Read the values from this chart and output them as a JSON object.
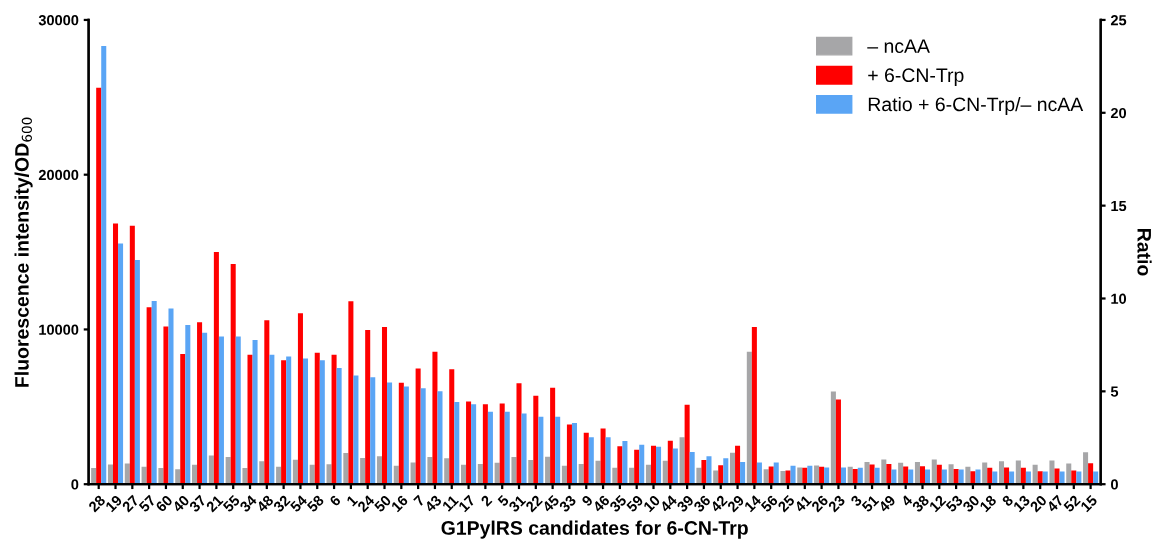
{
  "chart_data": {
    "type": "bar",
    "xlabel": "G1PylRS candidates for 6-CN-Trp",
    "ylabel": "Fluorescence intensity/OD$_{600}$",
    "y2label": "Ratio",
    "categories": [
      "28",
      "19",
      "27",
      "57",
      "60",
      "40",
      "37",
      "21",
      "55",
      "34",
      "48",
      "32",
      "54",
      "58",
      "6",
      "1",
      "24",
      "50",
      "16",
      "7",
      "43",
      "11",
      "17",
      "2",
      "5",
      "31",
      "22",
      "45",
      "33",
      "9",
      "46",
      "35",
      "59",
      "10",
      "44",
      "39",
      "36",
      "42",
      "29",
      "14",
      "56",
      "25",
      "41",
      "26",
      "23",
      "3",
      "51",
      "49",
      "4",
      "38",
      "12",
      "53",
      "30",
      "18",
      "8",
      "13",
      "20",
      "47",
      "52",
      "15"
    ],
    "series": [
      {
        "name": "– ncAA",
        "color": "#a6a6a8",
        "values": [
          1050,
          1270,
          1340,
          1120,
          1050,
          960,
          1250,
          1850,
          1760,
          1050,
          1490,
          1120,
          1580,
          1250,
          1290,
          2010,
          1690,
          1810,
          1200,
          1400,
          1750,
          1680,
          1250,
          1310,
          1380,
          1750,
          1570,
          1770,
          1190,
          1310,
          1510,
          1060,
          1060,
          1250,
          1510,
          3040,
          1060,
          880,
          2030,
          8560,
          970,
          860,
          1080,
          1210,
          5990,
          1120,
          1440,
          1590,
          1380,
          1440,
          1590,
          1290,
          1120,
          1400,
          1490,
          1530,
          1250,
          1530,
          1340,
          2070
        ]
      },
      {
        "name": "+ 6-CN-Trp",
        "color": "#ff0000",
        "values": [
          25620,
          16840,
          16700,
          11440,
          10190,
          8410,
          10460,
          15010,
          14230,
          8360,
          10590,
          8010,
          11040,
          8500,
          8360,
          11820,
          9970,
          10150,
          6560,
          7470,
          8560,
          7430,
          5340,
          5170,
          5220,
          6530,
          5710,
          6230,
          3860,
          3320,
          3600,
          2460,
          2220,
          2480,
          2800,
          5130,
          1570,
          1230,
          2480,
          10150,
          1140,
          880,
          1060,
          1120,
          5470,
          990,
          1270,
          1310,
          1140,
          1160,
          1250,
          990,
          840,
          1060,
          1080,
          1060,
          840,
          1010,
          880,
          1360
        ]
      },
      {
        "name": "Ratio + 6-CN-Trp/– ncAA",
        "color": "#5aa5f5",
        "axis": "y2",
        "values": [
          23.6,
          12.96,
          12.07,
          9.87,
          9.46,
          8.57,
          8.16,
          7.96,
          7.96,
          7.77,
          6.97,
          6.88,
          6.77,
          6.67,
          6.26,
          5.86,
          5.76,
          5.47,
          5.26,
          5.17,
          5.01,
          4.42,
          4.31,
          3.9,
          3.9,
          3.81,
          3.63,
          3.63,
          3.3,
          2.53,
          2.53,
          2.32,
          2.12,
          2.01,
          1.92,
          1.74,
          1.51,
          1.4,
          1.2,
          1.17,
          1.17,
          0.99,
          0.99,
          0.9,
          0.9,
          0.88,
          0.88,
          0.79,
          0.79,
          0.79,
          0.79,
          0.79,
          0.79,
          0.68,
          0.68,
          0.68,
          0.68,
          0.68,
          0.68,
          0.68
        ]
      }
    ],
    "ylim": [
      0,
      30000
    ],
    "yticks": [
      0,
      10000,
      20000,
      30000
    ],
    "y2lim": [
      0,
      25
    ],
    "y2ticks": [
      0,
      5,
      10,
      15,
      20,
      25
    ],
    "grid": false,
    "legend": "top right"
  }
}
